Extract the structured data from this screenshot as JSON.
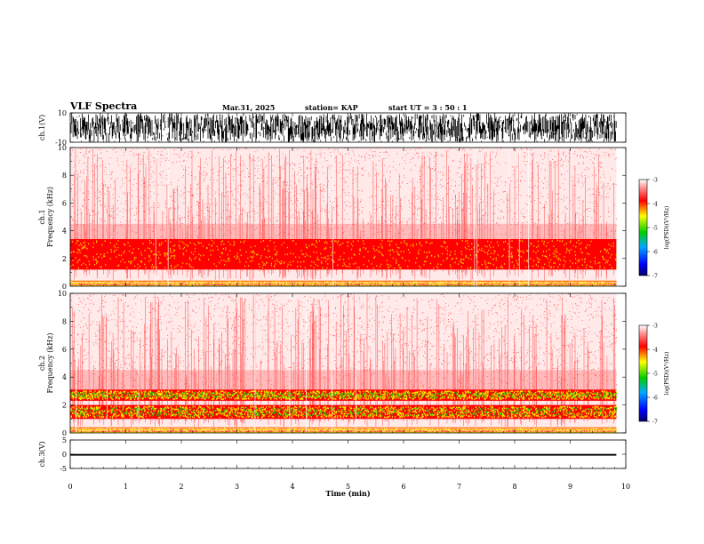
{
  "header": {
    "title": "VLF Spectra",
    "date": "Mar.31, 2025",
    "station": "station= KAP",
    "start_ut": "start UT =  3 : 50 : 1"
  },
  "colors": {
    "spectrum_bg": "#ffffff",
    "low": "#ff0000",
    "mid": "#ffff00",
    "high": "#00cc00",
    "waveform": "#000000"
  },
  "chart_data": [
    {
      "type": "line",
      "name": "ch1-waveform",
      "ylabel": "ch.1(V)",
      "ylim": [
        -10,
        10
      ],
      "yticks": [
        "10",
        "-10"
      ],
      "xlim": [
        0,
        10
      ],
      "note_amplitude": 10
    },
    {
      "type": "heatmap",
      "name": "ch1-spectrogram",
      "ylabel": "ch.1\nFrequency (kHz)",
      "ylim": [
        0,
        10
      ],
      "yticks": [
        "0",
        "2",
        "4",
        "6",
        "8",
        "10"
      ],
      "xlim": [
        0,
        10
      ],
      "data_end_min": 9.83,
      "bands": [
        {
          "from_khz": 1.2,
          "to_khz": 3.4,
          "level": "strong"
        },
        {
          "from_khz": 0.0,
          "to_khz": 0.4,
          "level": "strong"
        }
      ],
      "colorbar": {
        "label": "log(PSD)(V²/Hz)",
        "ticks": [
          "-3",
          "-4",
          "-5",
          "-6",
          "-7"
        ],
        "range": [
          -7,
          -3
        ]
      }
    },
    {
      "type": "heatmap",
      "name": "ch2-spectrogram",
      "ylabel": "ch.2\nFrequency (kHz)",
      "ylim": [
        0,
        10
      ],
      "yticks": [
        "0",
        "2",
        "4",
        "6",
        "8",
        "10"
      ],
      "xlim": [
        0,
        10
      ],
      "data_end_min": 9.83,
      "bands": [
        {
          "from_khz": 2.3,
          "to_khz": 3.1,
          "level": "very-strong"
        },
        {
          "from_khz": 1.0,
          "to_khz": 2.0,
          "level": "very-strong"
        },
        {
          "from_khz": 0.0,
          "to_khz": 0.4,
          "level": "strong"
        }
      ],
      "colorbar": {
        "label": "log(PSD)(V²/Hz)",
        "ticks": [
          "-3",
          "-4",
          "-5",
          "-6",
          "-7"
        ],
        "range": [
          -7,
          -3
        ]
      }
    },
    {
      "type": "line",
      "name": "ch3-waveform",
      "ylabel": "ch.3(V)",
      "ylim": [
        -5,
        5
      ],
      "yticks": [
        "5",
        "0",
        "-5"
      ],
      "xlim": [
        0,
        10
      ],
      "level_v": -0.2,
      "band_width_v": 0.6
    }
  ],
  "xaxis": {
    "label": "Time (min)",
    "ticks": [
      "0",
      "1",
      "2",
      "3",
      "4",
      "5",
      "6",
      "7",
      "8",
      "9",
      "10"
    ]
  }
}
